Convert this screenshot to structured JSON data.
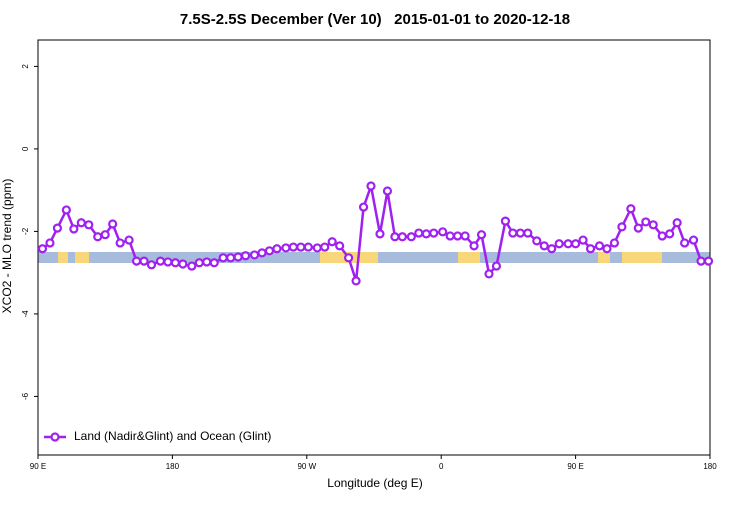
{
  "chart_data": {
    "type": "line",
    "title": "7.5S-2.5S December (Ver 10)   2015-01-01 to 2020-12-18",
    "x_label": "Longitude (deg E)",
    "y_label": "XCO2 - MLO trend (ppm)",
    "xlim": [
      90,
      540
    ],
    "xticks": [
      {
        "value": 90,
        "label": "90 E"
      },
      {
        "value": 180,
        "label": "180"
      },
      {
        "value": 270,
        "label": "90 W"
      },
      {
        "value": 360,
        "label": "0"
      },
      {
        "value": 450,
        "label": "90 E"
      },
      {
        "value": 540,
        "label": "180"
      }
    ],
    "ylim": [
      -7.42,
      2.64
    ],
    "yticks": [
      2,
      0,
      -2,
      -4,
      -6
    ],
    "legend": "bottomleft",
    "x": [
      93,
      98,
      103,
      109,
      114,
      119,
      124,
      130,
      135,
      140,
      145,
      151,
      156,
      161,
      166,
      172,
      177,
      182,
      187,
      193,
      198,
      203,
      208,
      214,
      219,
      224,
      229,
      235,
      240,
      245,
      250,
      256,
      261,
      266,
      271,
      277,
      282,
      287,
      292,
      298,
      303,
      308,
      313,
      319,
      324,
      329,
      334,
      340,
      345,
      350,
      355,
      361,
      366,
      371,
      376,
      382,
      387,
      392,
      397,
      403,
      408,
      413,
      418,
      424,
      429,
      434,
      439,
      445,
      450,
      455,
      460,
      466,
      471,
      476,
      481,
      487,
      492,
      497,
      502,
      508,
      513,
      518,
      523,
      529,
      534,
      539
    ],
    "series": [
      {
        "name": "Land (Nadir&Glint) and Ocean (Glint)",
        "color": "#a020f0",
        "values": [
          -2.42,
          -2.28,
          -1.92,
          -1.48,
          -1.94,
          -1.79,
          -1.84,
          -2.13,
          -2.08,
          -1.82,
          -2.28,
          -2.21,
          -2.72,
          -2.72,
          -2.81,
          -2.72,
          -2.74,
          -2.76,
          -2.79,
          -2.84,
          -2.76,
          -2.74,
          -2.76,
          -2.64,
          -2.64,
          -2.62,
          -2.59,
          -2.57,
          -2.52,
          -2.47,
          -2.42,
          -2.4,
          -2.38,
          -2.38,
          -2.38,
          -2.4,
          -2.38,
          -2.25,
          -2.35,
          -2.64,
          -3.2,
          -1.41,
          -0.9,
          -2.06,
          -1.02,
          -2.13,
          -2.13,
          -2.13,
          -2.04,
          -2.06,
          -2.04,
          -2.01,
          -2.11,
          -2.11,
          -2.11,
          -2.35,
          -2.08,
          -3.03,
          -2.84,
          -1.75,
          -2.04,
          -2.04,
          -2.04,
          -2.23,
          -2.35,
          -2.42,
          -2.3,
          -2.3,
          -2.3,
          -2.21,
          -2.42,
          -2.35,
          -2.42,
          -2.28,
          -1.89,
          -1.45,
          -1.92,
          -1.77,
          -1.84,
          -2.11,
          -2.06,
          -1.79,
          -2.28,
          -2.21,
          -2.72,
          -2.72
        ]
      }
    ]
  }
}
